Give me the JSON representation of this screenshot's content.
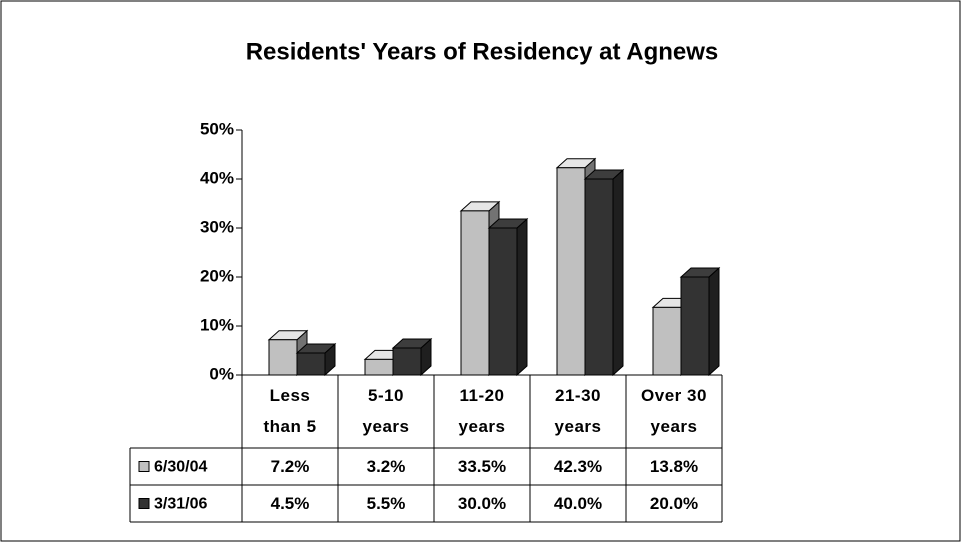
{
  "chart_data": {
    "type": "bar",
    "title": "Residents' Years of Residency at Agnews",
    "categories": [
      "Less than 5",
      "5-10 years",
      "11-20 years",
      "21-30 years",
      "Over 30 years"
    ],
    "series": [
      {
        "name": "6/30/04",
        "color": "#c0c0c0",
        "values": [
          7.2,
          3.2,
          33.5,
          42.3,
          13.8
        ],
        "value_labels": [
          "7.2%",
          "3.2%",
          "33.5%",
          "42.3%",
          "13.8%"
        ]
      },
      {
        "name": "3/31/06",
        "color": "#333333",
        "values": [
          4.5,
          5.5,
          30.0,
          40.0,
          20.0
        ],
        "value_labels": [
          "4.5%",
          "5.5%",
          "30.0%",
          "40.0%",
          "20.0%"
        ]
      }
    ],
    "ylim": [
      0,
      50
    ],
    "yticks": [
      {
        "value": 0,
        "label": "0%"
      },
      {
        "value": 10,
        "label": "10%"
      },
      {
        "value": 20,
        "label": "20%"
      },
      {
        "value": 30,
        "label": "30%"
      },
      {
        "value": 40,
        "label": "40%"
      },
      {
        "value": 50,
        "label": "50%"
      }
    ]
  }
}
